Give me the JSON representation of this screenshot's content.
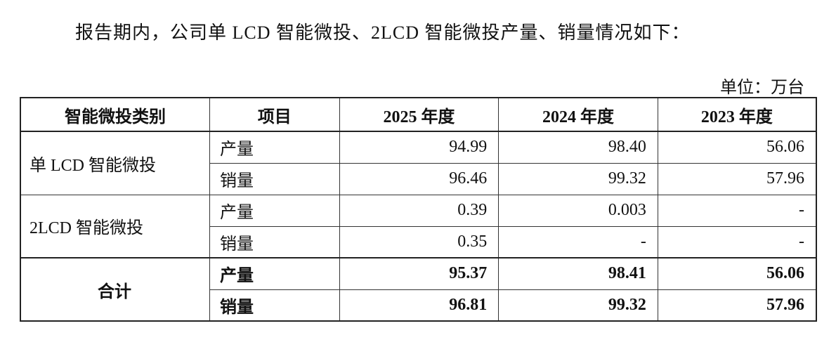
{
  "intro": "报告期内，公司单 LCD 智能微投、2LCD 智能微投产量、销量情况如下：",
  "unit": "单位：万台",
  "table": {
    "header": [
      "智能微投类别",
      "项目",
      "2025 年度",
      "2024 年度",
      "2023 年度"
    ],
    "groups": [
      {
        "category": "单 LCD 智能微投",
        "rows": [
          {
            "item": "产量",
            "values": [
              "94.99",
              "98.40",
              "56.06"
            ]
          },
          {
            "item": "销量",
            "values": [
              "96.46",
              "99.32",
              "57.96"
            ]
          }
        ]
      },
      {
        "category": "2LCD 智能微投",
        "rows": [
          {
            "item": "产量",
            "values": [
              "0.39",
              "0.003",
              "-"
            ]
          },
          {
            "item": "销量",
            "values": [
              "0.35",
              "-",
              "-"
            ]
          }
        ]
      }
    ],
    "total": {
      "category": "合计",
      "rows": [
        {
          "item": "产量",
          "values": [
            "95.37",
            "98.41",
            "56.06"
          ]
        },
        {
          "item": "销量",
          "values": [
            "96.81",
            "99.32",
            "57.96"
          ]
        }
      ]
    }
  }
}
